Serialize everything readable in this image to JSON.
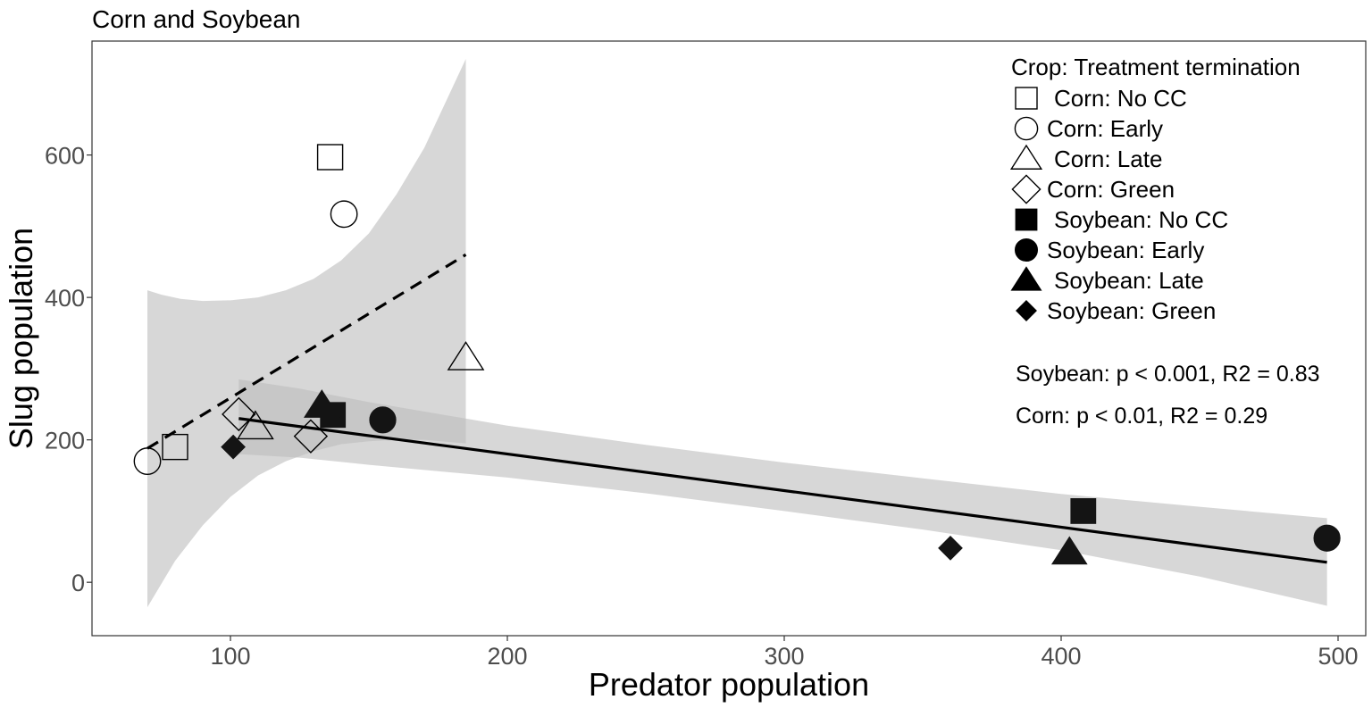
{
  "chart_data": {
    "type": "scatter",
    "title": "Corn and Soybean",
    "xlabel": "Predator population",
    "ylabel": "Slug population",
    "xlim": [
      50,
      510
    ],
    "ylim": [
      -75,
      760
    ],
    "xticks": [
      100,
      200,
      300,
      400,
      500
    ],
    "yticks": [
      0,
      200,
      400,
      600
    ],
    "grid": false,
    "legend": {
      "position": "top-right",
      "title": "Crop: Treatment termination",
      "entries": [
        {
          "label": "Corn: No CC",
          "shape": "square-open"
        },
        {
          "label": "Corn: Early",
          "shape": "circle-open"
        },
        {
          "label": "Corn: Late",
          "shape": "triangle-open"
        },
        {
          "label": "Corn: Green",
          "shape": "diamond-open"
        },
        {
          "label": "Soybean: No CC",
          "shape": "square-filled"
        },
        {
          "label": "Soybean: Early",
          "shape": "circle-filled"
        },
        {
          "label": "Soybean: Late",
          "shape": "triangle-filled"
        },
        {
          "label": "Soybean: Green",
          "shape": "diamond-filled"
        }
      ]
    },
    "annotations": [
      "Soybean: p < 0.001, R2 = 0.83",
      "Corn: p < 0.01, R2 = 0.29"
    ],
    "series": [
      {
        "name": "Corn: No CC",
        "shape": "square-open",
        "points": [
          [
            80,
            190
          ],
          [
            136,
            597
          ]
        ]
      },
      {
        "name": "Corn: Early",
        "shape": "circle-open",
        "points": [
          [
            70,
            170
          ],
          [
            141,
            517
          ]
        ]
      },
      {
        "name": "Corn: Late",
        "shape": "triangle-open",
        "points": [
          [
            109,
            218
          ],
          [
            185,
            315
          ]
        ]
      },
      {
        "name": "Corn: Green",
        "shape": "diamond-open",
        "points": [
          [
            103,
            236
          ],
          [
            129,
            205
          ]
        ]
      },
      {
        "name": "Soybean: No CC",
        "shape": "square-filled",
        "points": [
          [
            137,
            235
          ],
          [
            408,
            100
          ]
        ]
      },
      {
        "name": "Soybean: Early",
        "shape": "circle-filled",
        "points": [
          [
            155,
            228
          ],
          [
            496,
            62
          ]
        ]
      },
      {
        "name": "Soybean: Late",
        "shape": "triangle-filled",
        "points": [
          [
            133,
            248
          ],
          [
            403,
            42
          ]
        ]
      },
      {
        "name": "Soybean: Green",
        "shape": "diamond-filled",
        "points": [
          [
            101,
            190
          ],
          [
            360,
            48
          ]
        ]
      }
    ],
    "trend_lines": [
      {
        "crop": "Corn",
        "style": "dashed",
        "line": [
          [
            70,
            188
          ],
          [
            185,
            460
          ]
        ],
        "ci_upper": [
          [
            70,
            410
          ],
          [
            75,
            404
          ],
          [
            82,
            398
          ],
          [
            90,
            395
          ],
          [
            100,
            396
          ],
          [
            110,
            400
          ],
          [
            120,
            410
          ],
          [
            130,
            426
          ],
          [
            140,
            452
          ],
          [
            150,
            490
          ],
          [
            160,
            545
          ],
          [
            170,
            610
          ],
          [
            185,
            735
          ]
        ],
        "ci_lower": [
          [
            70,
            -35
          ],
          [
            80,
            30
          ],
          [
            90,
            80
          ],
          [
            100,
            120
          ],
          [
            110,
            150
          ],
          [
            120,
            170
          ],
          [
            130,
            184
          ],
          [
            140,
            194
          ],
          [
            150,
            198
          ],
          [
            160,
            200
          ],
          [
            170,
            200
          ],
          [
            185,
            195
          ]
        ]
      },
      {
        "crop": "Soybean",
        "style": "solid",
        "line": [
          [
            103,
            230
          ],
          [
            496,
            28
          ]
        ],
        "ci_upper": [
          [
            103,
            285
          ],
          [
            125,
            272
          ],
          [
            150,
            253
          ],
          [
            200,
            220
          ],
          [
            250,
            193
          ],
          [
            300,
            168
          ],
          [
            350,
            146
          ],
          [
            400,
            124
          ],
          [
            450,
            106
          ],
          [
            496,
            90
          ]
        ],
        "ci_lower": [
          [
            103,
            180
          ],
          [
            125,
            175
          ],
          [
            150,
            165
          ],
          [
            200,
            147
          ],
          [
            250,
            125
          ],
          [
            300,
            100
          ],
          [
            350,
            74
          ],
          [
            400,
            45
          ],
          [
            450,
            8
          ],
          [
            496,
            -33
          ]
        ]
      }
    ]
  }
}
